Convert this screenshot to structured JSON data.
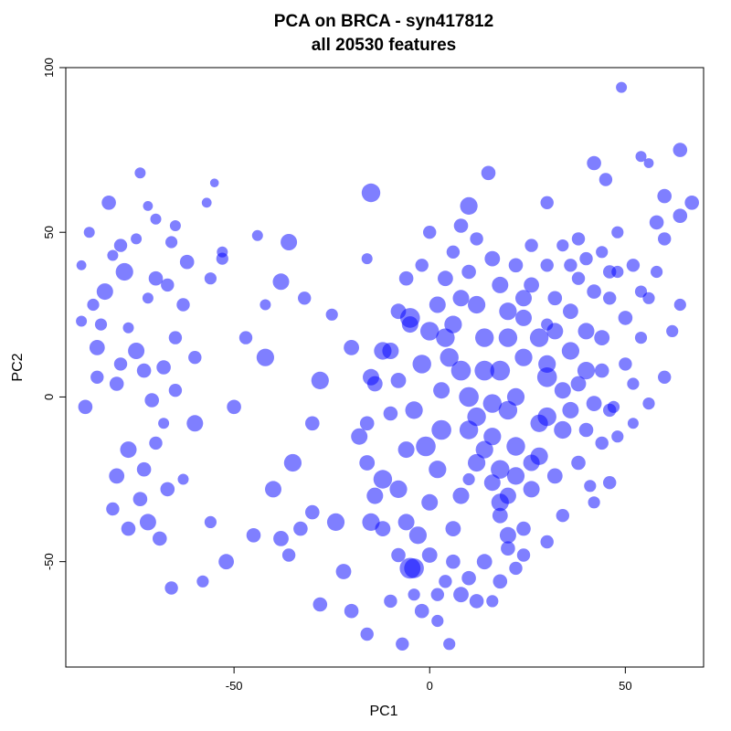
{
  "chart_data": {
    "type": "scatter",
    "title": "PCA on BRCA - syn417812",
    "subtitle": "all 20530 features",
    "xlabel": "PC1",
    "ylabel": "PC2",
    "xlim": [
      -93,
      70
    ],
    "ylim": [
      -82,
      100
    ],
    "x_ticks": [
      -50,
      0,
      50
    ],
    "y_ticks": [
      -50,
      0,
      50,
      100
    ],
    "grid": false,
    "legend": "none",
    "point_color": "#0000ff",
    "point_opacity": 0.5,
    "points": [
      [
        49,
        94,
        1.0
      ],
      [
        64,
        75,
        1.3
      ],
      [
        54,
        73,
        1.0
      ],
      [
        56,
        71,
        0.9
      ],
      [
        42,
        71,
        1.3
      ],
      [
        45,
        66,
        1.2
      ],
      [
        15,
        68,
        1.3
      ],
      [
        -74,
        68,
        1.0
      ],
      [
        -55,
        65,
        0.8
      ],
      [
        -15,
        62,
        1.7
      ],
      [
        -82,
        59,
        1.3
      ],
      [
        -57,
        59,
        0.9
      ],
      [
        -72,
        58,
        0.9
      ],
      [
        60,
        61,
        1.3
      ],
      [
        67,
        59,
        1.3
      ],
      [
        30,
        59,
        1.2
      ],
      [
        10,
        58,
        1.6
      ],
      [
        58,
        53,
        1.3
      ],
      [
        64,
        55,
        1.3
      ],
      [
        -65,
        52,
        1.0
      ],
      [
        -70,
        54,
        1.0
      ],
      [
        -44,
        49,
        1.0
      ],
      [
        -87,
        50,
        1.0
      ],
      [
        0,
        50,
        1.2
      ],
      [
        -53,
        42,
        1.1
      ],
      [
        -62,
        41,
        1.3
      ],
      [
        -36,
        47,
        1.5
      ],
      [
        -53,
        44,
        1.0
      ],
      [
        -75,
        48,
        1.0
      ],
      [
        -79,
        46,
        1.2
      ],
      [
        -66,
        47,
        1.1
      ],
      [
        -89,
        40,
        0.9
      ],
      [
        -81,
        43,
        1.0
      ],
      [
        -78,
        38,
        1.6
      ],
      [
        -83,
        32,
        1.5
      ],
      [
        -70,
        36,
        1.3
      ],
      [
        -67,
        34,
        1.2
      ],
      [
        -63,
        28,
        1.2
      ],
      [
        -56,
        36,
        1.1
      ],
      [
        -72,
        30,
        1.0
      ],
      [
        -86,
        28,
        1.1
      ],
      [
        -89,
        23,
        1.0
      ],
      [
        -77,
        21,
        1.0
      ],
      [
        -84,
        22,
        1.1
      ],
      [
        -75,
        14,
        1.5
      ],
      [
        -79,
        10,
        1.2
      ],
      [
        -85,
        15,
        1.4
      ],
      [
        -73,
        8,
        1.3
      ],
      [
        -68,
        9,
        1.3
      ],
      [
        -65,
        18,
        1.2
      ],
      [
        -60,
        12,
        1.2
      ],
      [
        -85,
        6,
        1.2
      ],
      [
        -80,
        4,
        1.3
      ],
      [
        -88,
        -3,
        1.3
      ],
      [
        -71,
        -1,
        1.3
      ],
      [
        -65,
        2,
        1.2
      ],
      [
        -60,
        -8,
        1.5
      ],
      [
        -70,
        -14,
        1.2
      ],
      [
        -77,
        -16,
        1.5
      ],
      [
        -73,
        -22,
        1.3
      ],
      [
        -80,
        -24,
        1.4
      ],
      [
        -74,
        -31,
        1.3
      ],
      [
        -67,
        -28,
        1.3
      ],
      [
        -63,
        -25,
        1.0
      ],
      [
        -81,
        -34,
        1.2
      ],
      [
        -72,
        -38,
        1.5
      ],
      [
        -77,
        -40,
        1.3
      ],
      [
        -69,
        -43,
        1.3
      ],
      [
        -56,
        -38,
        1.1
      ],
      [
        -52,
        -50,
        1.4
      ],
      [
        -58,
        -56,
        1.1
      ],
      [
        -66,
        -58,
        1.2
      ],
      [
        -50,
        -3,
        1.3
      ],
      [
        -42,
        12,
        1.6
      ],
      [
        -47,
        18,
        1.2
      ],
      [
        -42,
        28,
        1.0
      ],
      [
        -38,
        35,
        1.5
      ],
      [
        -32,
        30,
        1.2
      ],
      [
        -25,
        25,
        1.1
      ],
      [
        -20,
        15,
        1.4
      ],
      [
        -28,
        5,
        1.6
      ],
      [
        -30,
        -8,
        1.3
      ],
      [
        -35,
        -20,
        1.6
      ],
      [
        -40,
        -28,
        1.5
      ],
      [
        -30,
        -35,
        1.3
      ],
      [
        -36,
        -48,
        1.2
      ],
      [
        -33,
        -40,
        1.3
      ],
      [
        -24,
        -38,
        1.6
      ],
      [
        -22,
        -53,
        1.4
      ],
      [
        -15,
        -38,
        1.6
      ],
      [
        -12,
        -25,
        1.7
      ],
      [
        -18,
        -12,
        1.5
      ],
      [
        -10,
        -5,
        1.3
      ],
      [
        -8,
        5,
        1.4
      ],
      [
        -12,
        14,
        1.6
      ],
      [
        -5,
        22,
        1.5
      ],
      [
        -20,
        -65,
        1.3
      ],
      [
        -28,
        -63,
        1.3
      ],
      [
        -10,
        -62,
        1.2
      ],
      [
        -7,
        -75,
        1.2
      ],
      [
        -2,
        -65,
        1.3
      ],
      [
        -16,
        -72,
        1.2
      ],
      [
        2,
        -68,
        1.1
      ],
      [
        5,
        -75,
        1.1
      ],
      [
        -4,
        -52,
        1.8
      ],
      [
        -3,
        -42,
        1.6
      ],
      [
        0,
        -32,
        1.5
      ],
      [
        2,
        -22,
        1.6
      ],
      [
        3,
        -10,
        1.8
      ],
      [
        3,
        2,
        1.5
      ],
      [
        5,
        12,
        1.7
      ],
      [
        6,
        22,
        1.6
      ],
      [
        8,
        30,
        1.5
      ],
      [
        10,
        38,
        1.3
      ],
      [
        12,
        28,
        1.6
      ],
      [
        14,
        18,
        1.7
      ],
      [
        14,
        8,
        1.8
      ],
      [
        16,
        -2,
        1.7
      ],
      [
        16,
        -12,
        1.6
      ],
      [
        18,
        -22,
        1.7
      ],
      [
        18,
        -32,
        1.6
      ],
      [
        20,
        -42,
        1.5
      ],
      [
        14,
        -50,
        1.4
      ],
      [
        10,
        -55,
        1.3
      ],
      [
        8,
        -60,
        1.4
      ],
      [
        12,
        -62,
        1.3
      ],
      [
        20,
        -30,
        1.5
      ],
      [
        22,
        -15,
        1.7
      ],
      [
        22,
        0,
        1.6
      ],
      [
        24,
        12,
        1.6
      ],
      [
        24,
        24,
        1.5
      ],
      [
        26,
        34,
        1.4
      ],
      [
        28,
        18,
        1.7
      ],
      [
        30,
        6,
        1.8
      ],
      [
        30,
        -6,
        1.7
      ],
      [
        28,
        -18,
        1.6
      ],
      [
        26,
        -28,
        1.5
      ],
      [
        32,
        -24,
        1.4
      ],
      [
        34,
        -10,
        1.6
      ],
      [
        34,
        2,
        1.5
      ],
      [
        36,
        14,
        1.6
      ],
      [
        36,
        26,
        1.4
      ],
      [
        38,
        36,
        1.2
      ],
      [
        40,
        20,
        1.5
      ],
      [
        40,
        8,
        1.6
      ],
      [
        42,
        -2,
        1.4
      ],
      [
        44,
        -14,
        1.2
      ],
      [
        46,
        -26,
        1.2
      ],
      [
        42,
        -32,
        1.1
      ],
      [
        44,
        18,
        1.4
      ],
      [
        46,
        30,
        1.2
      ],
      [
        48,
        38,
        1.1
      ],
      [
        50,
        24,
        1.3
      ],
      [
        50,
        10,
        1.2
      ],
      [
        52,
        4,
        1.1
      ],
      [
        52,
        -8,
        1.0
      ],
      [
        54,
        18,
        1.1
      ],
      [
        56,
        30,
        1.1
      ],
      [
        58,
        38,
        1.1
      ],
      [
        60,
        48,
        1.2
      ],
      [
        62,
        20,
        1.1
      ],
      [
        64,
        28,
        1.1
      ],
      [
        60,
        6,
        1.2
      ],
      [
        56,
        -2,
        1.1
      ],
      [
        38,
        -20,
        1.3
      ],
      [
        34,
        -36,
        1.2
      ],
      [
        30,
        -44,
        1.2
      ],
      [
        24,
        -48,
        1.2
      ],
      [
        18,
        -56,
        1.3
      ],
      [
        16,
        -62,
        1.1
      ],
      [
        6,
        -50,
        1.3
      ],
      [
        0,
        -48,
        1.4
      ],
      [
        -6,
        -38,
        1.5
      ],
      [
        -8,
        -28,
        1.6
      ],
      [
        -6,
        -16,
        1.5
      ],
      [
        -4,
        -4,
        1.6
      ],
      [
        -2,
        10,
        1.7
      ],
      [
        0,
        20,
        1.7
      ],
      [
        2,
        28,
        1.5
      ],
      [
        4,
        36,
        1.4
      ],
      [
        6,
        44,
        1.2
      ],
      [
        8,
        52,
        1.3
      ],
      [
        12,
        48,
        1.2
      ],
      [
        16,
        42,
        1.4
      ],
      [
        18,
        34,
        1.5
      ],
      [
        20,
        26,
        1.6
      ],
      [
        22,
        40,
        1.3
      ],
      [
        26,
        46,
        1.2
      ],
      [
        30,
        40,
        1.2
      ],
      [
        32,
        30,
        1.3
      ],
      [
        34,
        46,
        1.1
      ],
      [
        36,
        40,
        1.2
      ],
      [
        38,
        48,
        1.2
      ],
      [
        40,
        42,
        1.2
      ],
      [
        42,
        32,
        1.3
      ],
      [
        44,
        44,
        1.1
      ],
      [
        46,
        38,
        1.2
      ],
      [
        48,
        50,
        1.1
      ],
      [
        52,
        40,
        1.2
      ],
      [
        54,
        32,
        1.1
      ],
      [
        10,
        -10,
        1.7
      ],
      [
        12,
        -20,
        1.6
      ],
      [
        8,
        -30,
        1.5
      ],
      [
        6,
        -40,
        1.4
      ],
      [
        4,
        -56,
        1.2
      ],
      [
        2,
        -60,
        1.2
      ],
      [
        -4,
        -60,
        1.1
      ],
      [
        -8,
        -48,
        1.3
      ],
      [
        -12,
        -40,
        1.4
      ],
      [
        -14,
        -30,
        1.5
      ],
      [
        -16,
        -20,
        1.4
      ],
      [
        -16,
        -8,
        1.3
      ],
      [
        -14,
        4,
        1.4
      ],
      [
        -10,
        14,
        1.5
      ],
      [
        -8,
        26,
        1.4
      ],
      [
        -6,
        36,
        1.3
      ],
      [
        -2,
        40,
        1.2
      ],
      [
        4,
        18,
        1.7
      ],
      [
        8,
        8,
        1.8
      ],
      [
        10,
        0,
        1.8
      ],
      [
        12,
        -6,
        1.7
      ],
      [
        14,
        -16,
        1.6
      ],
      [
        16,
        -26,
        1.5
      ],
      [
        18,
        -36,
        1.4
      ],
      [
        20,
        -46,
        1.3
      ],
      [
        22,
        -52,
        1.2
      ],
      [
        24,
        -40,
        1.3
      ],
      [
        26,
        -20,
        1.5
      ],
      [
        28,
        -8,
        1.6
      ],
      [
        30,
        10,
        1.6
      ],
      [
        32,
        20,
        1.5
      ],
      [
        24,
        30,
        1.5
      ],
      [
        20,
        18,
        1.7
      ],
      [
        18,
        8,
        1.8
      ],
      [
        20,
        -4,
        1.7
      ],
      [
        22,
        -24,
        1.6
      ],
      [
        36,
        -4,
        1.5
      ],
      [
        38,
        4,
        1.4
      ],
      [
        40,
        -10,
        1.3
      ],
      [
        44,
        8,
        1.3
      ],
      [
        46,
        -4,
        1.2
      ],
      [
        48,
        -12,
        1.1
      ],
      [
        47,
        -3,
        1.1
      ],
      [
        -5,
        24,
        1.8
      ],
      [
        -1,
        -15,
        1.8
      ],
      [
        -15,
        6,
        1.5
      ],
      [
        -68,
        -8,
        1.0
      ],
      [
        -16,
        42,
        1.0
      ],
      [
        -38,
        -43,
        1.4
      ],
      [
        -45,
        -42,
        1.3
      ],
      [
        -5,
        -52,
        1.9
      ],
      [
        10,
        -25,
        1.1
      ],
      [
        30,
        22,
        1.1
      ],
      [
        41,
        -27,
        1.1
      ]
    ]
  }
}
